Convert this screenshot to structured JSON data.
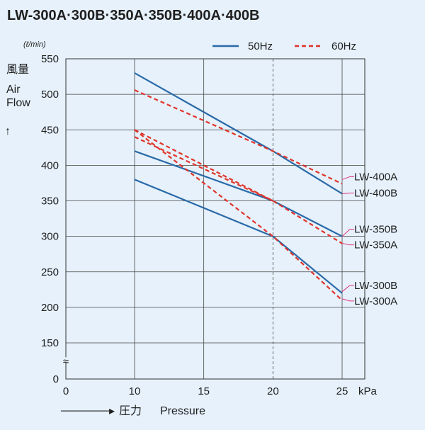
{
  "chart_data": {
    "type": "line",
    "title": "LW-300A·300B·350A·350B·400A·400B",
    "ylabel_ja": "風量",
    "ylabel_en_1": "Air",
    "ylabel_en_2": "Flow",
    "y_arrow": "↑",
    "yunit": "(ℓ/min)",
    "xlabel_arrow": "──────▸",
    "xlabel_ja": "圧力",
    "xlabel_en": "Pressure",
    "xunit": "kPa",
    "xlim": [
      0,
      25
    ],
    "ylim": [
      100,
      550
    ],
    "y_axis_break": "≈",
    "x_ticks": [
      0,
      10,
      15,
      20,
      25
    ],
    "x_tick_labels": [
      "0",
      "10",
      "15",
      "20",
      "25"
    ],
    "y_ticks": [
      150,
      200,
      250,
      300,
      350,
      400,
      450,
      500,
      550
    ],
    "y_tick_labels": [
      "150",
      "200",
      "250",
      "300",
      "350",
      "400",
      "450",
      "500",
      "550"
    ],
    "y_zero_label": "0",
    "grid": true,
    "legend": [
      {
        "label": "50Hz",
        "style": "solid",
        "color": "#2a6aa8"
      },
      {
        "label": "60Hz",
        "style": "dashed",
        "color": "#e0342a"
      }
    ],
    "series": [
      {
        "name": "LW-400B",
        "freq": "50Hz",
        "x": [
          10,
          20,
          25
        ],
        "y": [
          530,
          420,
          360
        ]
      },
      {
        "name": "LW-400A",
        "freq": "60Hz",
        "x": [
          10,
          20,
          25
        ],
        "y": [
          506,
          420,
          374
        ]
      },
      {
        "name": "LW-350B",
        "freq": "50Hz",
        "x": [
          10,
          20,
          25
        ],
        "y": [
          420,
          350,
          300
        ]
      },
      {
        "name": "LW-350A",
        "freq": "60Hz",
        "x": [
          10,
          20,
          25
        ],
        "y": [
          450,
          350,
          290
        ]
      },
      {
        "name": "LW-350A",
        "freq": "60Hz",
        "x": [
          10,
          20
        ],
        "y": [
          440,
          350
        ]
      },
      {
        "name": "LW-300B",
        "freq": "50Hz",
        "x": [
          10,
          20,
          25
        ],
        "y": [
          380,
          300,
          220
        ]
      },
      {
        "name": "LW-300A",
        "freq": "60Hz",
        "x": [
          10,
          20,
          25
        ],
        "y": [
          450,
          300,
          210
        ]
      }
    ],
    "end_labels": [
      {
        "text": "LW-400A",
        "y": 384,
        "from_y": 380
      },
      {
        "text": "LW-400B",
        "y": 361,
        "from_y": 360
      },
      {
        "text": "LW-350B",
        "y": 310,
        "from_y": 300
      },
      {
        "text": "LW-350A",
        "y": 288,
        "from_y": 290
      },
      {
        "text": "LW-300B",
        "y": 231,
        "from_y": 222
      },
      {
        "text": "LW-300A",
        "y": 209,
        "from_y": 212
      }
    ]
  }
}
